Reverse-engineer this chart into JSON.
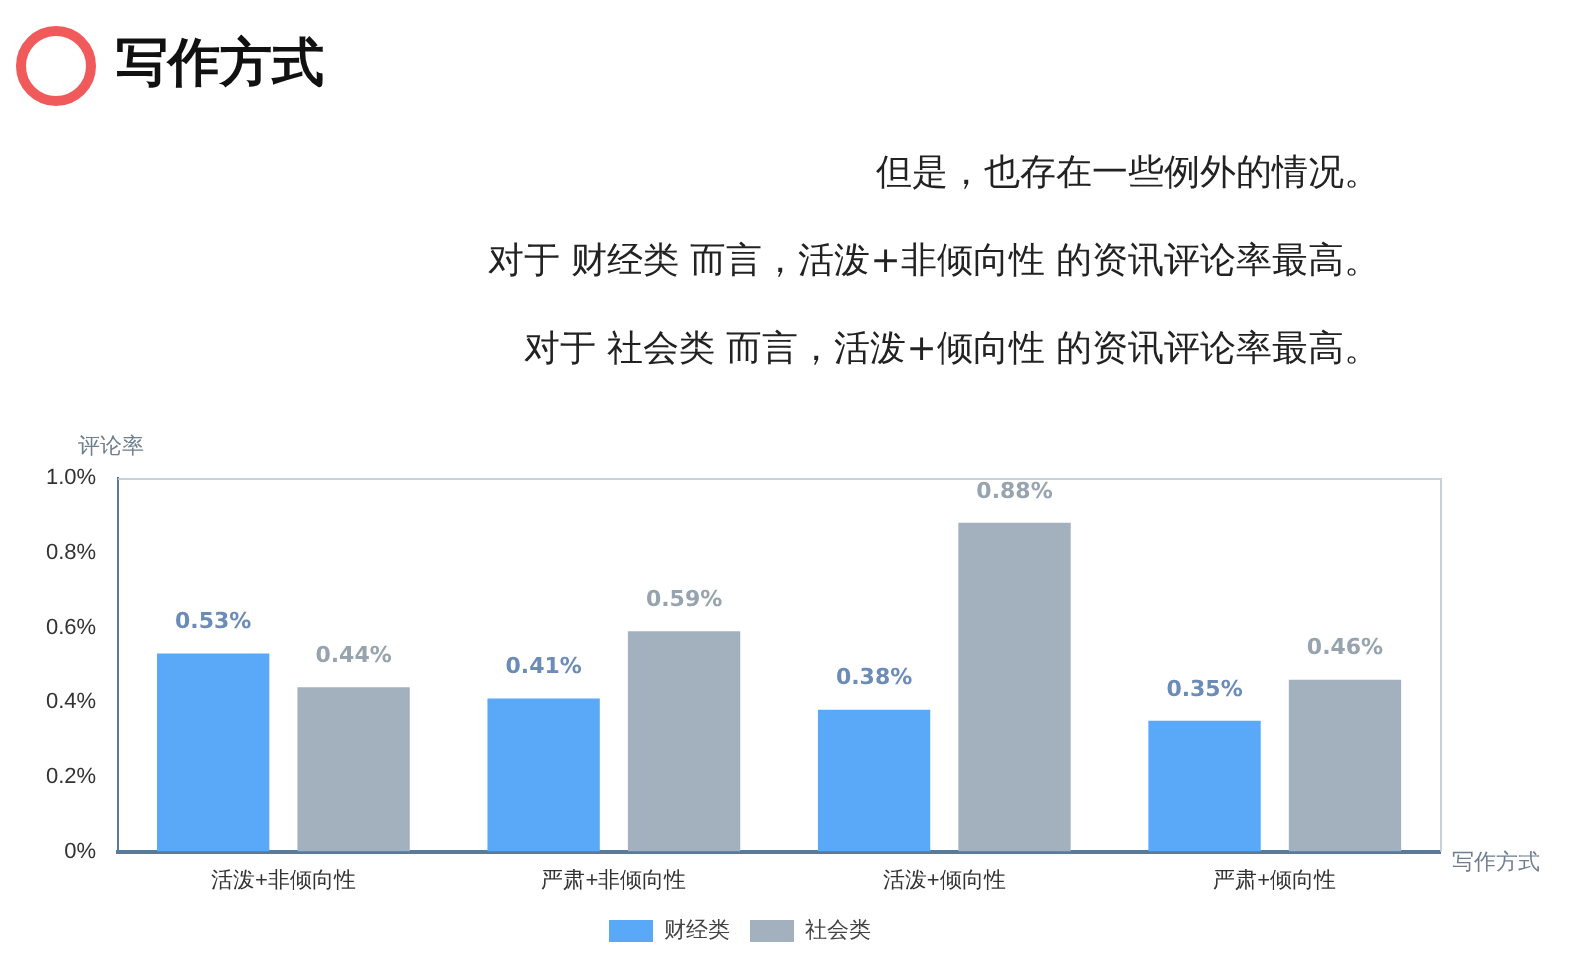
{
  "chart_data": {
    "type": "bar",
    "title": "写作方式",
    "annotations": [
      "但是，也存在一些例外的情况。",
      "对于 财经类 而言，活泼+非倾向性 的资讯评论率最高。",
      "对于 社会类 而言，活泼+倾向性 的资讯评论率最高。"
    ],
    "xlabel": "写作方式",
    "ylabel": "评论率",
    "categories": [
      "活泼+非倾向性",
      "严肃+非倾向性",
      "活泼+倾向性",
      "严肃+倾向性"
    ],
    "series": [
      {
        "name": "财经类",
        "color": "#5aa9f8",
        "values": [
          0.53,
          0.41,
          0.38,
          0.35
        ],
        "value_labels": [
          "0.53%",
          "0.41%",
          "0.38%",
          "0.35%"
        ]
      },
      {
        "name": "社会类",
        "color": "#a3b1be",
        "values": [
          0.44,
          0.59,
          0.88,
          0.46
        ],
        "value_labels": [
          "0.44%",
          "0.59%",
          "0.88%",
          "0.46%"
        ]
      }
    ],
    "ylim": [
      0,
      1
    ],
    "yticks": [
      {
        "value": 0,
        "label": "0%"
      },
      {
        "value": 0.2,
        "label": "0.2%"
      },
      {
        "value": 0.4,
        "label": "0.4%"
      },
      {
        "value": 0.6,
        "label": "0.6%"
      },
      {
        "value": 0.8,
        "label": "0.8%"
      },
      {
        "value": 1,
        "label": "1.0%"
      }
    ],
    "grid": false,
    "legend": "bottom"
  }
}
